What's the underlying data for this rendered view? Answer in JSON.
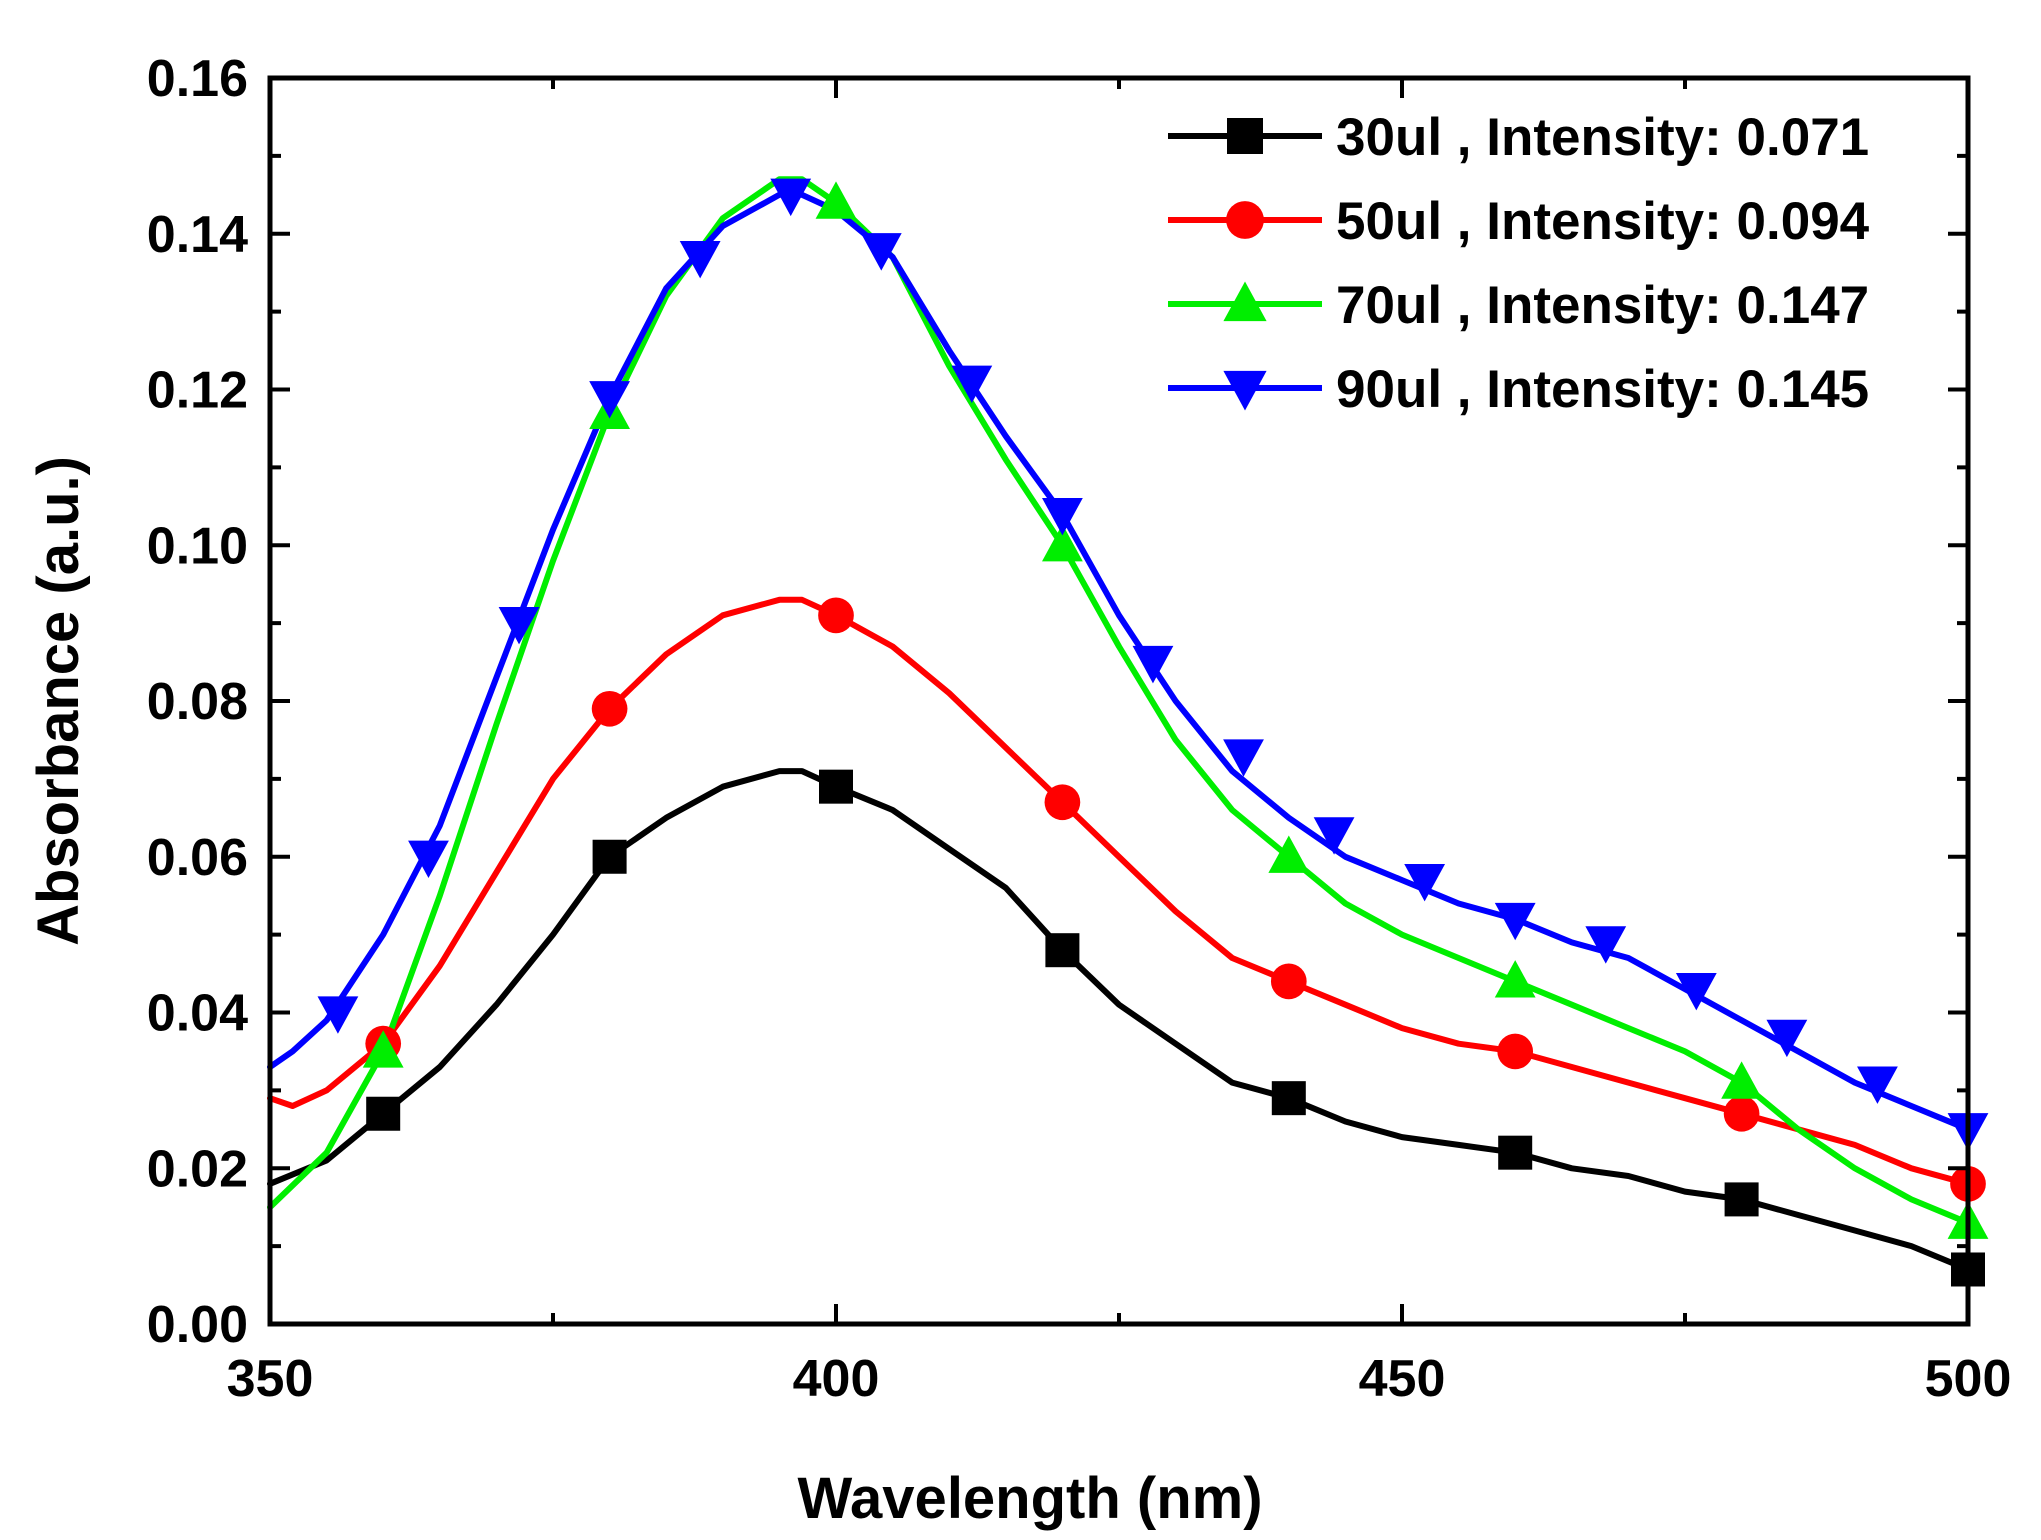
{
  "chart_data": {
    "type": "line",
    "title": "",
    "xlabel": "Wavelength (nm)",
    "ylabel": "Absorbance (a.u.)",
    "xlim": [
      350,
      500
    ],
    "ylim": [
      0.0,
      0.16
    ],
    "x_ticks": [
      350,
      400,
      450,
      500
    ],
    "x_tick_labels": [
      "350",
      "400",
      "450",
      "500"
    ],
    "y_ticks": [
      0.0,
      0.02,
      0.04,
      0.06,
      0.08,
      0.1,
      0.12,
      0.14,
      0.16
    ],
    "y_tick_labels": [
      "0.00",
      "0.02",
      "0.04",
      "0.06",
      "0.08",
      "0.10",
      "0.12",
      "0.14",
      "0.16"
    ],
    "grid": false,
    "legend_position": "top-right",
    "series": [
      {
        "name": "30ul , Intensity: 0.071",
        "color": "#000000",
        "marker": "square",
        "x": [
          350,
          355,
          360,
          365,
          370,
          375,
          380,
          385,
          390,
          395,
          397,
          400,
          405,
          410,
          415,
          420,
          425,
          430,
          435,
          440,
          445,
          450,
          455,
          460,
          465,
          470,
          475,
          480,
          485,
          490,
          495,
          500
        ],
        "y": [
          0.018,
          0.021,
          0.027,
          0.033,
          0.041,
          0.05,
          0.06,
          0.065,
          0.069,
          0.071,
          0.071,
          0.069,
          0.066,
          0.061,
          0.056,
          0.048,
          0.041,
          0.036,
          0.031,
          0.029,
          0.026,
          0.024,
          0.023,
          0.022,
          0.02,
          0.019,
          0.017,
          0.016,
          0.014,
          0.012,
          0.01,
          0.007
        ],
        "marker_x": [
          360,
          380,
          400,
          420,
          440,
          460,
          480,
          500
        ],
        "marker_y": [
          0.027,
          0.06,
          0.069,
          0.048,
          0.029,
          0.022,
          0.016,
          0.007
        ]
      },
      {
        "name": "50ul , Intensity: 0.094",
        "color": "#ff0000",
        "marker": "circle",
        "x": [
          350,
          352,
          355,
          360,
          365,
          370,
          375,
          380,
          385,
          390,
          395,
          397,
          400,
          405,
          410,
          415,
          420,
          425,
          430,
          435,
          440,
          445,
          450,
          455,
          460,
          465,
          470,
          475,
          480,
          485,
          490,
          495,
          500
        ],
        "y": [
          0.029,
          0.028,
          0.03,
          0.036,
          0.046,
          0.058,
          0.07,
          0.079,
          0.086,
          0.091,
          0.093,
          0.093,
          0.091,
          0.087,
          0.081,
          0.074,
          0.067,
          0.06,
          0.053,
          0.047,
          0.044,
          0.041,
          0.038,
          0.036,
          0.035,
          0.033,
          0.031,
          0.029,
          0.027,
          0.025,
          0.023,
          0.02,
          0.018
        ],
        "marker_x": [
          360,
          380,
          400,
          420,
          440,
          460,
          480,
          500
        ],
        "marker_y": [
          0.036,
          0.079,
          0.091,
          0.067,
          0.044,
          0.035,
          0.027,
          0.018
        ]
      },
      {
        "name": "70ul , Intensity: 0.147",
        "color": "#00ee00",
        "marker": "triangle-up",
        "x": [
          350,
          355,
          360,
          365,
          370,
          375,
          380,
          385,
          390,
          395,
          397,
          400,
          405,
          410,
          415,
          420,
          425,
          430,
          435,
          440,
          445,
          450,
          455,
          460,
          465,
          470,
          475,
          480,
          485,
          490,
          495,
          500
        ],
        "y": [
          0.015,
          0.022,
          0.035,
          0.055,
          0.077,
          0.098,
          0.117,
          0.132,
          0.142,
          0.147,
          0.147,
          0.144,
          0.137,
          0.123,
          0.111,
          0.1,
          0.087,
          0.075,
          0.066,
          0.06,
          0.054,
          0.05,
          0.047,
          0.044,
          0.041,
          0.038,
          0.035,
          0.031,
          0.025,
          0.02,
          0.016,
          0.013
        ],
        "marker_x": [
          360,
          380,
          400,
          420,
          440,
          460,
          480,
          500
        ],
        "marker_y": [
          0.035,
          0.117,
          0.144,
          0.1,
          0.06,
          0.044,
          0.031,
          0.013
        ]
      },
      {
        "name": "90ul , Intensity: 0.145",
        "color": "#0000ff",
        "marker": "triangle-down",
        "x": [
          350,
          352,
          355,
          360,
          365,
          370,
          375,
          380,
          385,
          390,
          395,
          397,
          400,
          405,
          410,
          415,
          420,
          425,
          430,
          435,
          440,
          445,
          450,
          455,
          460,
          465,
          470,
          475,
          480,
          485,
          490,
          495,
          500
        ],
        "y": [
          0.033,
          0.035,
          0.039,
          0.05,
          0.064,
          0.083,
          0.102,
          0.119,
          0.133,
          0.141,
          0.145,
          0.145,
          0.143,
          0.137,
          0.125,
          0.114,
          0.104,
          0.091,
          0.08,
          0.071,
          0.065,
          0.06,
          0.057,
          0.054,
          0.052,
          0.049,
          0.047,
          0.043,
          0.039,
          0.035,
          0.031,
          0.028,
          0.025
        ],
        "marker_x": [
          356,
          364,
          372,
          380,
          388,
          396,
          404,
          412,
          420,
          428,
          436,
          444,
          452,
          460,
          468,
          476,
          484,
          492,
          500
        ],
        "marker_y": [
          0.04,
          0.06,
          0.09,
          0.119,
          0.137,
          0.145,
          0.138,
          0.121,
          0.104,
          0.085,
          0.073,
          0.063,
          0.057,
          0.052,
          0.049,
          0.043,
          0.037,
          0.031,
          0.025
        ]
      }
    ]
  }
}
